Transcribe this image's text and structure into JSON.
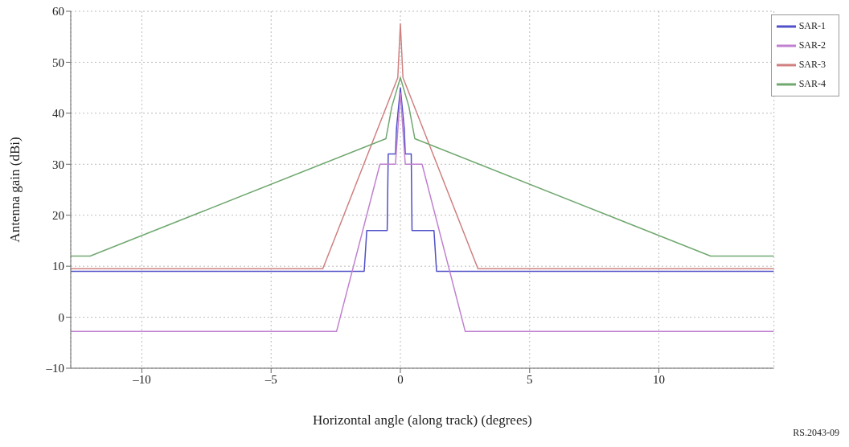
{
  "chart_data": {
    "type": "line",
    "xlabel": "Horizontal angle (along track) (degrees)",
    "ylabel": "Antenna gain (dBi)",
    "xlim": [
      -12.75,
      14.45
    ],
    "xticks": [
      {
        "value": -10,
        "label": "–10"
      },
      {
        "value": -5,
        "label": "–5"
      },
      0,
      5,
      10
    ],
    "ylim": [
      -10,
      60
    ],
    "yticks": [
      {
        "value": -10,
        "label": "–10"
      },
      0,
      10,
      20,
      30,
      40,
      50,
      60
    ],
    "grid": true,
    "legend": "top right",
    "line_style": "solid",
    "annotations": [
      "RS.2043-09"
    ],
    "series": [
      {
        "name": "SAR-1",
        "color": "#5050c8",
        "x": [
          -12.75,
          -1.4,
          -1.3,
          -0.51,
          -0.47,
          -0.19,
          -0.15,
          0,
          0.15,
          0.19,
          0.42,
          0.45,
          1.3,
          1.4,
          14.45
        ],
        "values": [
          9,
          9,
          17,
          17,
          32,
          32,
          37,
          45,
          37,
          32,
          32,
          17,
          17,
          9,
          9
        ]
      },
      {
        "name": "SAR-2",
        "color": "#c080d0",
        "x": [
          -12.75,
          -2.47,
          -0.79,
          -0.19,
          0,
          0.19,
          0.84,
          2.51,
          14.45
        ],
        "values": [
          -2.8,
          -2.8,
          30,
          30,
          44,
          30,
          30,
          -2.8,
          -2.8
        ]
      },
      {
        "name": "SAR-3",
        "color": "#d08080",
        "x": [
          -12.75,
          -3,
          -0.1,
          0,
          0.1,
          3,
          14.45
        ],
        "values": [
          9.5,
          9.5,
          47,
          57.5,
          47,
          9.5,
          9.5
        ]
      },
      {
        "name": "SAR-4",
        "color": "#70a870",
        "x": [
          -12.75,
          -12,
          -0.56,
          -0.33,
          0,
          0.33,
          0.56,
          12,
          14.45
        ],
        "values": [
          12,
          12,
          35,
          41.3,
          47,
          41.3,
          35,
          12,
          12
        ]
      }
    ]
  }
}
